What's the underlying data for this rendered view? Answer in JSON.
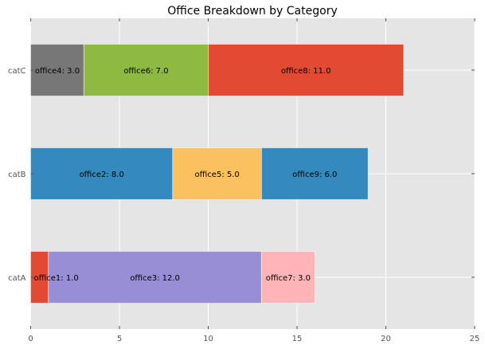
{
  "chart_data": {
    "type": "bar",
    "orientation": "horizontal",
    "stacked": true,
    "title": "Office Breakdown by Category",
    "xlabel": "",
    "ylabel": "",
    "xlim": [
      0,
      25
    ],
    "xticks": [
      "0",
      "5",
      "10",
      "15",
      "20",
      "25"
    ],
    "grid": true,
    "categories": [
      "catA",
      "catB",
      "catC"
    ],
    "segments": [
      [
        {
          "label": "office1: 1.0",
          "name": "office1",
          "value": 1.0,
          "color": "#E24A33"
        },
        {
          "label": "office3: 12.0",
          "name": "office3",
          "value": 12.0,
          "color": "#988ED5"
        },
        {
          "label": "office7: 3.0",
          "name": "office7",
          "value": 3.0,
          "color": "#FFB5B8"
        }
      ],
      [
        {
          "label": "office2: 8.0",
          "name": "office2",
          "value": 8.0,
          "color": "#348ABD"
        },
        {
          "label": "office5: 5.0",
          "name": "office5",
          "value": 5.0,
          "color": "#FBC15E"
        },
        {
          "label": "office9: 6.0",
          "name": "office9",
          "value": 6.0,
          "color": "#348ABD"
        }
      ],
      [
        {
          "label": "office4: 3.0",
          "name": "office4",
          "value": 3.0,
          "color": "#777777"
        },
        {
          "label": "office6: 7.0",
          "name": "office6",
          "value": 7.0,
          "color": "#8EBA42"
        },
        {
          "label": "office8: 11.0",
          "name": "office8",
          "value": 11.0,
          "color": "#E24A33"
        }
      ]
    ]
  }
}
